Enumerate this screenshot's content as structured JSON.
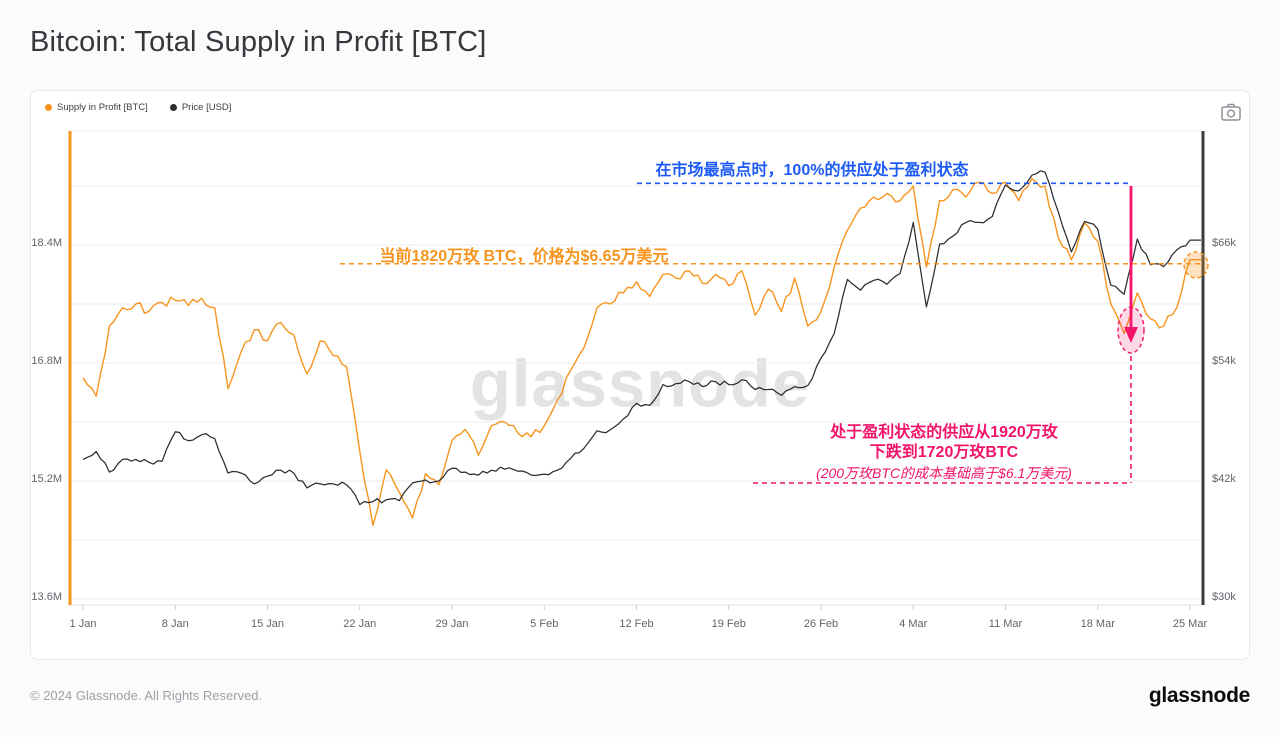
{
  "page": {
    "title": "Bitcoin: Total Supply in Profit [BTC]"
  },
  "legend": {
    "items": [
      {
        "label": "Supply in Profit [BTC]",
        "color": "#f7941e"
      },
      {
        "label": "Price [USD]",
        "color": "#2c2d30"
      }
    ]
  },
  "toolbar": {
    "camera_icon": "camera-export-icon"
  },
  "watermark": {
    "text": "glassnode"
  },
  "annotations": {
    "peak": {
      "text": "在市场最高点时，100%的供应处于盈利状态",
      "color": "#1e5bf5"
    },
    "current": {
      "text": "当前1820万玫 BTC，价格为$6.65万美元",
      "color": "#f7941e"
    },
    "drop": {
      "line1": "处于盈利状态的供应从1920万玫",
      "line2": "下跌到1720万玫BTC",
      "line3": "(200万玫BTC的成本基础高于$6.1万美元)",
      "color": "#f2146a"
    }
  },
  "footer": {
    "copyright": "© 2024 Glassnode. All Rights Reserved.",
    "logo_text": "glassnode"
  },
  "chart_data": {
    "type": "line",
    "title": "Bitcoin: Total Supply in Profit [BTC]",
    "x_tick_labels": [
      "1 Jan",
      "8 Jan",
      "15 Jan",
      "22 Jan",
      "29 Jan",
      "5 Feb",
      "12 Feb",
      "19 Feb",
      "26 Feb",
      "4 Mar",
      "11 Mar",
      "18 Mar",
      "25 Mar"
    ],
    "x_range_labels": [
      "1 Jan",
      "25 Mar"
    ],
    "grid": true,
    "legend_position": "top-left",
    "left_axis": {
      "series": "Supply in Profit [BTC]",
      "ticks": [
        "18.4M",
        "16.8M",
        "15.2M",
        "13.6M"
      ],
      "tick_values_M": [
        18.4,
        16.8,
        15.2,
        13.6
      ],
      "range_M": [
        13.42,
        19.95
      ],
      "spine_color": "#f7941e"
    },
    "right_axis": {
      "series": "Price [USD]",
      "ticks": [
        "$66k",
        "$54k",
        "$42k",
        "$30k"
      ],
      "tick_values_k": [
        66,
        54,
        42,
        30
      ],
      "range_k": [
        28.7,
        77.6
      ],
      "marker_line_color": "#3b3c3e"
    },
    "series": [
      {
        "name": "Supply in Profit [BTC]",
        "color": "#f7941e",
        "axis": "left",
        "unit": "million BTC",
        "interval": "daily",
        "values": [
          16.6,
          16.35,
          17.3,
          17.55,
          17.6,
          17.5,
          17.62,
          17.65,
          17.58,
          17.68,
          17.55,
          16.45,
          16.95,
          17.25,
          17.1,
          17.35,
          17.18,
          16.65,
          17.1,
          16.9,
          16.75,
          15.6,
          14.6,
          15.35,
          15.05,
          14.7,
          15.3,
          15.15,
          15.75,
          15.9,
          15.55,
          15.95,
          16.0,
          15.85,
          15.8,
          15.95,
          16.3,
          16.7,
          17.0,
          17.55,
          17.6,
          17.75,
          17.9,
          17.7,
          18.0,
          17.95,
          18.05,
          17.88,
          18.0,
          17.85,
          18.05,
          17.45,
          17.8,
          17.5,
          17.95,
          17.3,
          17.5,
          18.1,
          18.6,
          18.9,
          19.05,
          19.1,
          19.0,
          19.2,
          18.1,
          19.0,
          19.15,
          19.05,
          19.25,
          19.1,
          19.25,
          19.0,
          19.3,
          19.2,
          18.5,
          18.2,
          18.7,
          18.45,
          17.6,
          17.2,
          17.75,
          17.4,
          17.3,
          17.55,
          18.2
        ]
      },
      {
        "name": "Price [USD]",
        "color": "#2c2d30",
        "axis": "right",
        "unit": "thousand USD",
        "interval": "daily",
        "values": [
          44.2,
          45.0,
          42.9,
          44.2,
          44.2,
          43.9,
          44.0,
          47.0,
          46.1,
          46.7,
          46.3,
          42.8,
          42.8,
          41.7,
          42.5,
          43.1,
          42.8,
          41.3,
          41.7,
          41.7,
          41.6,
          39.6,
          39.9,
          40.1,
          40.0,
          41.8,
          42.1,
          42.0,
          43.3,
          42.9,
          42.6,
          43.1,
          43.2,
          43.0,
          42.6,
          42.7,
          43.1,
          44.3,
          45.3,
          47.1,
          47.2,
          48.3,
          49.9,
          49.7,
          51.8,
          51.9,
          52.1,
          51.6,
          52.1,
          51.8,
          52.3,
          51.3,
          51.3,
          50.7,
          51.6,
          51.7,
          54.5,
          57.0,
          62.5,
          61.4,
          62.4,
          62.0,
          63.1,
          68.3,
          59.7,
          66.1,
          66.9,
          68.3,
          68.3,
          68.9,
          72.1,
          71.5,
          73.1,
          73.4,
          69.4,
          65.3,
          68.4,
          67.6,
          61.9,
          61.0,
          66.6,
          64.0,
          63.8,
          65.5,
          66.5
        ]
      }
    ],
    "guides": {
      "peak_supply_line_M": 19.25,
      "current_supply_line_M": 18.2,
      "drop_low_M": 17.2,
      "current_price_k": 66.5
    }
  }
}
